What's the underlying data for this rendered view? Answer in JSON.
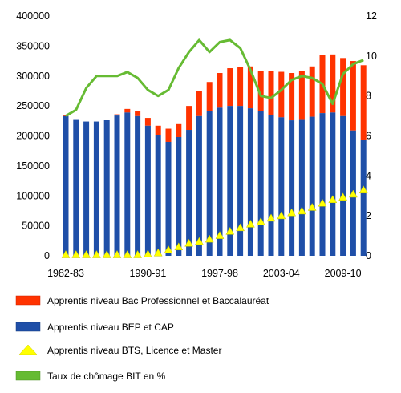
{
  "chart_data": {
    "type": "bar",
    "left_axis": {
      "min": 0,
      "max": 400000,
      "step": 50000,
      "tick_labels": [
        "0",
        "50000",
        "100000",
        "150000",
        "200000",
        "250000",
        "300000",
        "350000",
        "400000"
      ]
    },
    "right_axis": {
      "min": 0,
      "max": 12,
      "step": 2,
      "tick_labels": [
        "0",
        "2",
        "4",
        "6",
        "8",
        "10",
        "12"
      ]
    },
    "x_tick_labels": [
      {
        "label": "1982-83",
        "index": 0
      },
      {
        "label": "1990-91",
        "index": 8
      },
      {
        "label": "1997-98",
        "index": 15
      },
      {
        "label": "2003-04",
        "index": 21
      },
      {
        "label": "2009-10",
        "index": 27
      }
    ],
    "categories": [
      "1982-83",
      "1983-84",
      "1984-85",
      "1985-86",
      "1986-87",
      "1987-88",
      "1988-89",
      "1989-90",
      "1990-91",
      "1991-92",
      "1992-93",
      "1993-94",
      "1994-95",
      "1995-96",
      "1996-97",
      "1997-98",
      "1998-99",
      "1999-00",
      "2000-01",
      "2001-02",
      "2002-03",
      "2003-04",
      "2004-05",
      "2005-06",
      "2006-07",
      "2007-08",
      "2008-09",
      "2009-10",
      "2010-11",
      "2011-12"
    ],
    "series": [
      {
        "name": "Apprentis niveau BEP et CAP",
        "kind": "bar",
        "color": "#1f4fa8",
        "values": [
          233000,
          228000,
          224000,
          224000,
          227000,
          234000,
          239000,
          233000,
          217000,
          202000,
          190000,
          198000,
          210000,
          233000,
          241000,
          247000,
          250000,
          250000,
          246000,
          241000,
          235000,
          231000,
          226000,
          228000,
          232000,
          238000,
          239000,
          233000,
          209000,
          194000
        ]
      },
      {
        "name": "Apprentis niveau Bac Professionnel et Baccalauréat",
        "kind": "bar_stack",
        "color": "#ff3300",
        "totals": [
          235000,
          228000,
          224000,
          224000,
          227000,
          236000,
          245000,
          242000,
          230000,
          217000,
          212000,
          221000,
          250000,
          275000,
          290000,
          305000,
          313000,
          315000,
          316000,
          309000,
          308000,
          307000,
          305000,
          309000,
          316000,
          335000,
          336000,
          330000,
          325000,
          318000
        ]
      },
      {
        "name": "Apprentis niveau BTS, Licence et Master",
        "kind": "triangle",
        "color": "#ffff00",
        "values": [
          2000,
          2000,
          2000,
          2000,
          2000,
          2000,
          2000,
          2000,
          3000,
          5000,
          10000,
          15000,
          21000,
          24000,
          28000,
          34000,
          41000,
          47000,
          53000,
          57000,
          63000,
          67000,
          72000,
          75000,
          81000,
          88000,
          94000,
          98000,
          103000,
          110000
        ]
      },
      {
        "name": "Taux de chômage BIT en %",
        "kind": "line",
        "color": "#66bb33",
        "values": [
          7.0,
          7.3,
          8.4,
          9.0,
          9.0,
          9.0,
          9.2,
          8.9,
          8.3,
          8.0,
          8.3,
          9.4,
          10.2,
          10.8,
          10.2,
          10.7,
          10.8,
          10.4,
          9.3,
          8.0,
          7.9,
          8.3,
          8.8,
          9.0,
          8.9,
          8.6,
          7.6,
          9.1,
          9.6,
          9.8
        ]
      }
    ]
  }
}
